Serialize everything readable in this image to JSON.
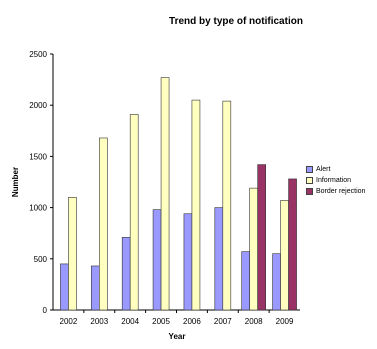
{
  "chart_data": {
    "type": "bar",
    "title": "Trend by type of notification",
    "xlabel": "Year",
    "ylabel": "Number",
    "ylim": [
      0,
      2500
    ],
    "yticks": [
      0,
      500,
      1000,
      1500,
      2000,
      2500
    ],
    "categories": [
      "2002",
      "2003",
      "2004",
      "2005",
      "2006",
      "2007",
      "2008",
      "2009"
    ],
    "series": [
      {
        "name": "Alert",
        "color": "#9999ff",
        "values": [
          450,
          430,
          710,
          980,
          940,
          1000,
          570,
          550
        ]
      },
      {
        "name": "Information",
        "color": "#ffffc0",
        "values": [
          1100,
          1680,
          1910,
          2270,
          2050,
          2040,
          1190,
          1070
        ]
      },
      {
        "name": "Border rejection",
        "color": "#993366",
        "values": [
          null,
          null,
          null,
          null,
          null,
          null,
          1420,
          1280
        ]
      }
    ],
    "grid": false,
    "legend_position": "right"
  }
}
